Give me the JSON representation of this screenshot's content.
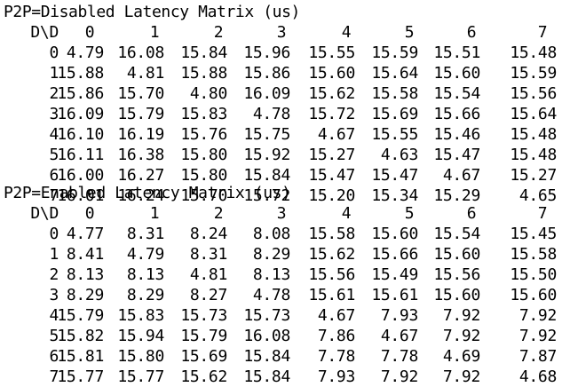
{
  "matrices": [
    {
      "title": "P2P=Disabled Latency Matrix (us)",
      "corner": "D\\D",
      "columns": [
        "0",
        "1",
        "2",
        "3",
        "4",
        "5",
        "6",
        "7"
      ],
      "rows": [
        {
          "label": "0",
          "values": [
            "4.79",
            "16.08",
            "15.84",
            "15.96",
            "15.55",
            "15.59",
            "15.51",
            "15.48"
          ]
        },
        {
          "label": "1",
          "values": [
            "15.88",
            "4.81",
            "15.88",
            "15.86",
            "15.60",
            "15.64",
            "15.60",
            "15.59"
          ]
        },
        {
          "label": "2",
          "values": [
            "15.86",
            "15.70",
            "4.80",
            "16.09",
            "15.62",
            "15.58",
            "15.54",
            "15.56"
          ]
        },
        {
          "label": "3",
          "values": [
            "16.09",
            "15.79",
            "15.83",
            "4.78",
            "15.72",
            "15.69",
            "15.66",
            "15.64"
          ]
        },
        {
          "label": "4",
          "values": [
            "16.10",
            "16.19",
            "15.76",
            "15.75",
            "4.67",
            "15.55",
            "15.46",
            "15.48"
          ]
        },
        {
          "label": "5",
          "values": [
            "16.11",
            "16.38",
            "15.80",
            "15.92",
            "15.27",
            "4.63",
            "15.47",
            "15.48"
          ]
        },
        {
          "label": "6",
          "values": [
            "16.00",
            "16.27",
            "15.80",
            "15.84",
            "15.47",
            "15.47",
            "4.67",
            "15.27"
          ]
        },
        {
          "label": "7",
          "values": [
            "16.01",
            "16.24",
            "15.70",
            "15.72",
            "15.20",
            "15.34",
            "15.29",
            "4.65"
          ]
        }
      ]
    },
    {
      "title": "P2P=Enabled Latency Matrix (us)",
      "corner": "D\\D",
      "columns": [
        "0",
        "1",
        "2",
        "3",
        "4",
        "5",
        "6",
        "7"
      ],
      "rows": [
        {
          "label": "0",
          "values": [
            "4.77",
            "8.31",
            "8.24",
            "8.08",
            "15.58",
            "15.60",
            "15.54",
            "15.45"
          ]
        },
        {
          "label": "1",
          "values": [
            "8.41",
            "4.79",
            "8.31",
            "8.29",
            "15.62",
            "15.66",
            "15.60",
            "15.58"
          ]
        },
        {
          "label": "2",
          "values": [
            "8.13",
            "8.13",
            "4.81",
            "8.13",
            "15.56",
            "15.49",
            "15.56",
            "15.50"
          ]
        },
        {
          "label": "3",
          "values": [
            "8.29",
            "8.29",
            "8.27",
            "4.78",
            "15.61",
            "15.61",
            "15.60",
            "15.60"
          ]
        },
        {
          "label": "4",
          "values": [
            "15.79",
            "15.83",
            "15.73",
            "15.73",
            "4.67",
            "7.93",
            "7.92",
            "7.92"
          ]
        },
        {
          "label": "5",
          "values": [
            "15.82",
            "15.94",
            "15.79",
            "16.08",
            "7.86",
            "4.67",
            "7.92",
            "7.92"
          ]
        },
        {
          "label": "6",
          "values": [
            "15.81",
            "15.80",
            "15.69",
            "15.84",
            "7.78",
            "7.78",
            "4.69",
            "7.87"
          ]
        },
        {
          "label": "7",
          "values": [
            "15.77",
            "15.77",
            "15.62",
            "15.84",
            "7.93",
            "7.92",
            "7.92",
            "4.68"
          ]
        }
      ]
    }
  ]
}
